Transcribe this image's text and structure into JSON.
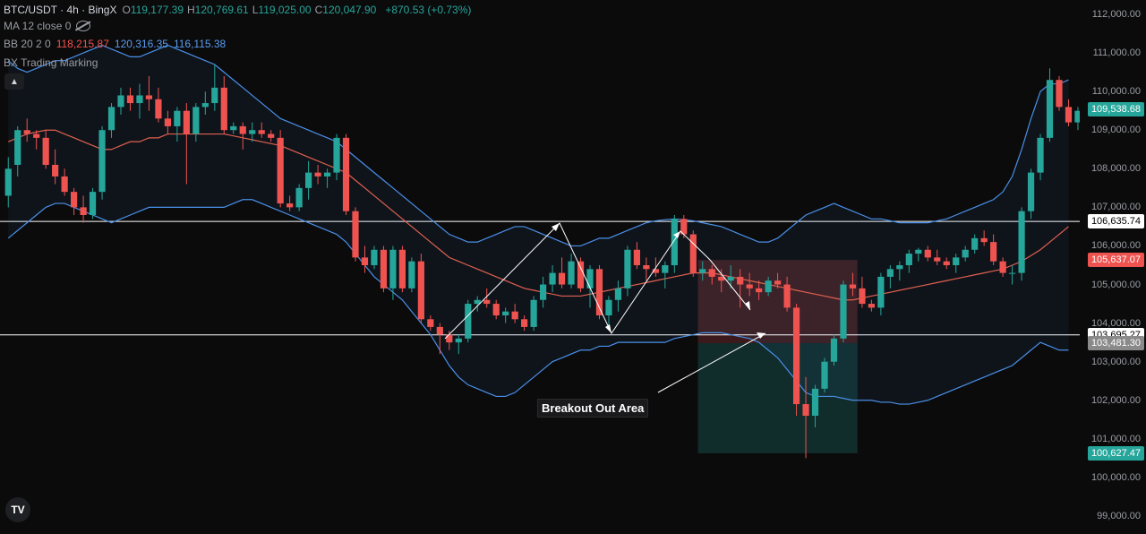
{
  "header": {
    "symbol": "BTC/USDT · 4h · BingX",
    "ohlc": [
      {
        "key": "O",
        "value": "119,177.39"
      },
      {
        "key": "H",
        "value": "120,769.61"
      },
      {
        "key": "L",
        "value": "119,025.00"
      },
      {
        "key": "C",
        "value": "120,047.90"
      }
    ],
    "change": "+870.53 (+0.73%)"
  },
  "indicators": {
    "ma": {
      "label": "MA 12 close 0"
    },
    "bb": {
      "label": "BB 20 2 0",
      "upper": "118,215.87",
      "basis": "120,316.35",
      "lower": "116,115.38"
    },
    "bx": {
      "label": "BX Trading Marking"
    }
  },
  "collapse_icon": "chevron-up-icon",
  "annotation_text": "Breakout Out Area",
  "price_axis": {
    "min": 98800,
    "max": 112300,
    "ticks": [
      "112,000.00",
      "111,000.00",
      "110,000.00",
      "109,000.00",
      "108,000.00",
      "107,000.00",
      "106,000.00",
      "105,000.00",
      "104,000.00",
      "103,000.00",
      "102,000.00",
      "101,000.00",
      "100,000.00",
      "99,000.00"
    ],
    "tags": [
      {
        "text": "109,538.68",
        "price": 109538.68,
        "bg": "#26a69a",
        "fg": "#ffffff"
      },
      {
        "text": "106,635.74",
        "price": 106635.74,
        "bg": "#ffffff",
        "fg": "#000000"
      },
      {
        "text": "105,637.07",
        "price": 105637.07,
        "bg": "#ef5350",
        "fg": "#ffffff"
      },
      {
        "text": "103,695.27",
        "price": 103695.27,
        "bg": "#ffffff",
        "fg": "#000000"
      },
      {
        "text": "103,481.30",
        "price": 103481.3,
        "bg": "#8a8a8a",
        "fg": "#ffffff"
      },
      {
        "text": "100,627.47",
        "price": 100627.47,
        "bg": "#26a69a",
        "fg": "#ffffff"
      }
    ]
  },
  "horizontal_lines": [
    106635.74,
    103695.27
  ],
  "position_box": {
    "entry": 103481.3,
    "stop": 105637.07,
    "target": 100627.47,
    "start_bar": 74,
    "end_bar": 90
  },
  "colors": {
    "up": "#26a69a",
    "down": "#ef5350",
    "bb": "#4a8fe7",
    "ma": "#e0604f"
  },
  "chart_data": {
    "type": "candlestick",
    "title": "BTC/USDT · 4h · BingX",
    "ylim": [
      98800,
      112300
    ],
    "candles": [
      [
        107300,
        108300,
        107000,
        108000
      ],
      [
        108100,
        109100,
        107800,
        109000
      ],
      [
        109000,
        109300,
        108700,
        108900
      ],
      [
        108900,
        109000,
        108500,
        108800
      ],
      [
        108800,
        109000,
        108000,
        108100
      ],
      [
        108100,
        108500,
        107600,
        107800
      ],
      [
        107800,
        108000,
        107300,
        107400
      ],
      [
        107400,
        107500,
        106800,
        107000
      ],
      [
        107000,
        107300,
        106600,
        106800
      ],
      [
        106800,
        107500,
        106700,
        107400
      ],
      [
        107400,
        109100,
        107200,
        109000
      ],
      [
        109000,
        109700,
        108800,
        109600
      ],
      [
        109600,
        110100,
        109400,
        109900
      ],
      [
        109900,
        110100,
        109500,
        109700
      ],
      [
        109700,
        110200,
        109300,
        109900
      ],
      [
        109900,
        110400,
        109500,
        109800
      ],
      [
        109800,
        110100,
        109200,
        109300
      ],
      [
        109300,
        109500,
        108900,
        109100
      ],
      [
        109100,
        109600,
        108700,
        109500
      ],
      [
        109500,
        109700,
        107600,
        108900
      ],
      [
        108900,
        109700,
        108700,
        109600
      ],
      [
        109600,
        110000,
        109400,
        109700
      ],
      [
        109700,
        110700,
        109500,
        110100
      ],
      [
        110100,
        110400,
        108900,
        109000
      ],
      [
        109000,
        109200,
        108900,
        109100
      ],
      [
        109100,
        109200,
        108500,
        108900
      ],
      [
        108900,
        109200,
        108700,
        109000
      ],
      [
        109000,
        109200,
        108800,
        108900
      ],
      [
        108900,
        109000,
        108700,
        108800
      ],
      [
        108800,
        109000,
        107000,
        107100
      ],
      [
        107100,
        107300,
        106900,
        107000
      ],
      [
        107000,
        107600,
        106900,
        107500
      ],
      [
        107500,
        108200,
        107200,
        107900
      ],
      [
        107900,
        108100,
        107600,
        107800
      ],
      [
        107800,
        108000,
        107500,
        107900
      ],
      [
        107900,
        108900,
        107700,
        108800
      ],
      [
        108800,
        108900,
        106800,
        106900
      ],
      [
        106900,
        107000,
        105600,
        105700
      ],
      [
        105700,
        106000,
        105300,
        105500
      ],
      [
        105500,
        106000,
        105400,
        105900
      ],
      [
        105900,
        106000,
        104800,
        104900
      ],
      [
        104900,
        106000,
        104600,
        105900
      ],
      [
        105900,
        106000,
        104800,
        104900
      ],
      [
        104900,
        105700,
        104800,
        105600
      ],
      [
        105600,
        105800,
        104000,
        104100
      ],
      [
        104100,
        104200,
        103800,
        103900
      ],
      [
        103900,
        104000,
        103200,
        103700
      ],
      [
        103700,
        103800,
        103300,
        103500
      ],
      [
        103500,
        103700,
        103200,
        103600
      ],
      [
        103600,
        104600,
        103500,
        104500
      ],
      [
        104500,
        104700,
        104300,
        104600
      ],
      [
        104600,
        104900,
        104400,
        104500
      ],
      [
        104500,
        104600,
        104100,
        104200
      ],
      [
        104200,
        104400,
        104000,
        104300
      ],
      [
        104300,
        104500,
        104000,
        104100
      ],
      [
        104100,
        104200,
        103800,
        103900
      ],
      [
        103900,
        104700,
        103800,
        104600
      ],
      [
        104600,
        105200,
        104400,
        105000
      ],
      [
        105000,
        105500,
        104800,
        105300
      ],
      [
        105300,
        105700,
        104900,
        105000
      ],
      [
        105000,
        105800,
        104900,
        105600
      ],
      [
        105600,
        105700,
        104800,
        104900
      ],
      [
        104900,
        105500,
        104400,
        105400
      ],
      [
        105400,
        105500,
        104100,
        104200
      ],
      [
        104200,
        104700,
        103900,
        104600
      ],
      [
        104600,
        105100,
        104300,
        104900
      ],
      [
        104900,
        106000,
        104700,
        105900
      ],
      [
        105900,
        106100,
        105400,
        105500
      ],
      [
        105500,
        105700,
        105100,
        105400
      ],
      [
        105400,
        105700,
        105200,
        105300
      ],
      [
        105300,
        105600,
        104900,
        105500
      ],
      [
        105500,
        106800,
        105300,
        106700
      ],
      [
        106700,
        106800,
        106200,
        106300
      ],
      [
        106300,
        106400,
        105200,
        105300
      ],
      [
        105300,
        105600,
        105100,
        105400
      ],
      [
        105400,
        105500,
        105000,
        105200
      ],
      [
        105200,
        105400,
        104800,
        105100
      ],
      [
        105100,
        105500,
        104900,
        105200
      ],
      [
        105200,
        105400,
        104400,
        105000
      ],
      [
        105000,
        105300,
        104700,
        104900
      ],
      [
        104900,
        105100,
        104600,
        104800
      ],
      [
        104800,
        105200,
        104700,
        105100
      ],
      [
        105100,
        105300,
        104900,
        105000
      ],
      [
        105000,
        105200,
        104300,
        104400
      ],
      [
        104400,
        104500,
        101600,
        101900
      ],
      [
        101900,
        102600,
        100500,
        101600
      ],
      [
        101600,
        102400,
        101300,
        102300
      ],
      [
        102300,
        103100,
        102200,
        103000
      ],
      [
        103000,
        103700,
        102900,
        103600
      ],
      [
        103600,
        105100,
        103500,
        105000
      ],
      [
        105000,
        105300,
        104700,
        104900
      ],
      [
        104900,
        105200,
        104400,
        104500
      ],
      [
        104500,
        104600,
        104300,
        104400
      ],
      [
        104400,
        105300,
        104200,
        105200
      ],
      [
        105200,
        105500,
        104900,
        105400
      ],
      [
        105400,
        105600,
        105100,
        105500
      ],
      [
        105500,
        105900,
        105300,
        105800
      ],
      [
        105800,
        105950,
        105600,
        105900
      ],
      [
        105900,
        106000,
        105600,
        105700
      ],
      [
        105700,
        105900,
        105500,
        105600
      ],
      [
        105600,
        105700,
        105400,
        105500
      ],
      [
        105500,
        105800,
        105300,
        105700
      ],
      [
        105700,
        106000,
        105600,
        105900
      ],
      [
        105900,
        106300,
        105800,
        106200
      ],
      [
        106200,
        106400,
        106000,
        106100
      ],
      [
        106100,
        106300,
        105500,
        105600
      ],
      [
        105600,
        105700,
        105200,
        105300
      ],
      [
        105300,
        105500,
        105000,
        105300
      ],
      [
        105300,
        107000,
        105100,
        106900
      ],
      [
        106900,
        108000,
        106700,
        107900
      ],
      [
        107900,
        108900,
        107700,
        108800
      ],
      [
        108800,
        110600,
        108700,
        110300
      ],
      [
        110300,
        110400,
        109500,
        109600
      ],
      [
        109600,
        109800,
        109100,
        109200
      ],
      [
        109200,
        109600,
        109000,
        109500
      ]
    ],
    "series": [
      {
        "name": "BB upper",
        "values": [
          110800,
          110600,
          110500,
          110600,
          110700,
          110800,
          110800,
          110900,
          111000,
          111100,
          111200,
          111100,
          111000,
          110900,
          110900,
          111000,
          111100,
          111200,
          111100,
          111000,
          110900,
          110800,
          110700,
          110500,
          110300,
          110100,
          109900,
          109700,
          109500,
          109300,
          109200,
          109100,
          109000,
          108900,
          108800,
          108700,
          108500,
          108300,
          108100,
          107900,
          107700,
          107500,
          107300,
          107100,
          106900,
          106700,
          106500,
          106300,
          106200,
          106100,
          106100,
          106200,
          106300,
          106400,
          106500,
          106500,
          106400,
          106300,
          106200,
          106100,
          106000,
          106000,
          106100,
          106200,
          106200,
          106300,
          106400,
          106500,
          106600,
          106650,
          106680,
          106700,
          106680,
          106650,
          106600,
          106550,
          106500,
          106400,
          106300,
          106200,
          106100,
          106100,
          106200,
          106400,
          106600,
          106800,
          106900,
          107000,
          107100,
          107000,
          106900,
          106800,
          106700,
          106700,
          106650,
          106600,
          106600,
          106600,
          106600,
          106650,
          106700,
          106800,
          106900,
          107000,
          107100,
          107200,
          107400,
          107800,
          108500,
          109300,
          110000,
          110200,
          110200,
          110300
        ]
      },
      {
        "name": "BB basis",
        "values": [
          108700,
          108800,
          108900,
          108950,
          109000,
          109000,
          108900,
          108800,
          108700,
          108600,
          108500,
          108500,
          108600,
          108700,
          108700,
          108800,
          108800,
          108900,
          108900,
          108900,
          108900,
          108900,
          108900,
          108900,
          108850,
          108800,
          108750,
          108700,
          108650,
          108600,
          108500,
          108400,
          108300,
          108200,
          108100,
          108000,
          107900,
          107700,
          107500,
          107300,
          107100,
          106900,
          106700,
          106500,
          106300,
          106100,
          105900,
          105700,
          105600,
          105500,
          105400,
          105300,
          105200,
          105100,
          105000,
          104900,
          104850,
          104800,
          104750,
          104700,
          104700,
          104700,
          104750,
          104800,
          104850,
          104900,
          104950,
          105000,
          105050,
          105100,
          105150,
          105200,
          105250,
          105300,
          105300,
          105300,
          105250,
          105200,
          105150,
          105100,
          105050,
          105000,
          104950,
          104900,
          104850,
          104800,
          104750,
          104700,
          104650,
          104600,
          104600,
          104650,
          104700,
          104750,
          104800,
          104850,
          104900,
          104950,
          105000,
          105050,
          105100,
          105150,
          105200,
          105250,
          105300,
          105350,
          105400,
          105500,
          105600,
          105750,
          105900,
          106100,
          106300,
          106500
        ]
      },
      {
        "name": "BB lower",
        "values": [
          106200,
          106400,
          106600,
          106800,
          107000,
          107100,
          107100,
          107000,
          106900,
          106800,
          106700,
          106600,
          106700,
          106800,
          106900,
          107000,
          107000,
          107000,
          107000,
          107000,
          107000,
          107000,
          107000,
          107000,
          107100,
          107200,
          107200,
          107100,
          107000,
          106900,
          106800,
          106700,
          106600,
          106500,
          106400,
          106300,
          106100,
          105800,
          105500,
          105200,
          105000,
          104800,
          104600,
          104300,
          104000,
          103700,
          103300,
          102900,
          102600,
          102400,
          102300,
          102200,
          102100,
          102100,
          102200,
          102400,
          102600,
          102800,
          103000,
          103100,
          103200,
          103300,
          103300,
          103400,
          103400,
          103500,
          103500,
          103500,
          103500,
          103500,
          103500,
          103600,
          103650,
          103700,
          103750,
          103750,
          103750,
          103700,
          103650,
          103600,
          103500,
          103300,
          103100,
          102800,
          102500,
          102200,
          102100,
          102100,
          102100,
          102050,
          102000,
          102000,
          102000,
          101950,
          101950,
          101900,
          101900,
          101950,
          102000,
          102100,
          102200,
          102300,
          102400,
          102500,
          102600,
          102700,
          102800,
          102900,
          103100,
          103300,
          103500,
          103400,
          103300,
          103300
        ]
      }
    ]
  }
}
